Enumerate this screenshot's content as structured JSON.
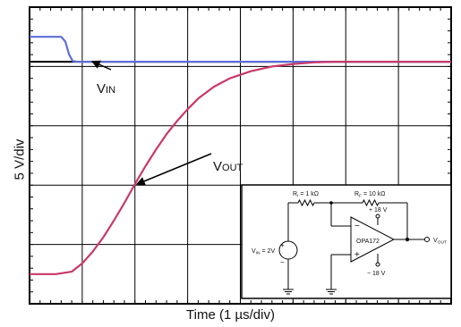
{
  "chart_data": {
    "type": "line",
    "xlabel": "Time (1 µs/div)",
    "ylabel": "5 V/div",
    "x_divisions": 8,
    "y_divisions": 5,
    "x_unit": "µs",
    "y_unit": "V",
    "xlim": [
      0,
      8
    ],
    "ylim": [
      -2.5,
      22.5
    ],
    "grid": true,
    "series": [
      {
        "name": "VIN",
        "color": "#5b6fd6",
        "x": [
          0,
          0.6,
          0.68,
          0.75,
          0.82,
          0.9,
          8
        ],
        "y": [
          20,
          20,
          19.6,
          18.5,
          17.95,
          17.9,
          17.9
        ]
      },
      {
        "name": "VOUT",
        "color": "#c8386a",
        "x": [
          0,
          0.5,
          0.8,
          1.0,
          1.2,
          1.4,
          1.6,
          1.8,
          2.0,
          2.2,
          2.4,
          2.6,
          2.8,
          3.0,
          3.2,
          3.5,
          3.8,
          4.2,
          4.6,
          5.0,
          5.4,
          5.8,
          6.2,
          6.6,
          8.0
        ],
        "y": [
          0,
          0,
          0.2,
          0.9,
          1.9,
          3.1,
          4.5,
          6.0,
          7.6,
          9.1,
          10.5,
          11.8,
          12.9,
          13.9,
          14.8,
          15.8,
          16.5,
          17.1,
          17.5,
          17.7,
          17.85,
          17.9,
          17.9,
          17.9,
          17.9
        ]
      }
    ],
    "reference_line": {
      "y": 17.9,
      "color": "#000000"
    },
    "annotations": [
      {
        "label_main": "V",
        "label_sub": "IN",
        "target": "VIN",
        "arrow_to_x": 1.2,
        "arrow_to_y": 17.9
      },
      {
        "label_main": "V",
        "label_sub": "OUT",
        "target": "VOUT",
        "arrow_to_x": 2.05,
        "arrow_to_y": 7.6
      }
    ],
    "inset": {
      "ri_label": "R",
      "ri_sub": "I",
      "ri_value": " = 1 kΩ",
      "rf_label": "R",
      "rf_sub": "F",
      "rf_value": " = 10 kΩ",
      "vin_label": "V",
      "vin_sub": "IN",
      "vin_value": " = 2V",
      "opamp_name": "OPA172",
      "vpos": "+ 18 V",
      "vneg": "− 18 V",
      "vout_label": "V",
      "vout_sub": "OUT",
      "minus_sign": "−",
      "plus_sign": "+"
    }
  }
}
